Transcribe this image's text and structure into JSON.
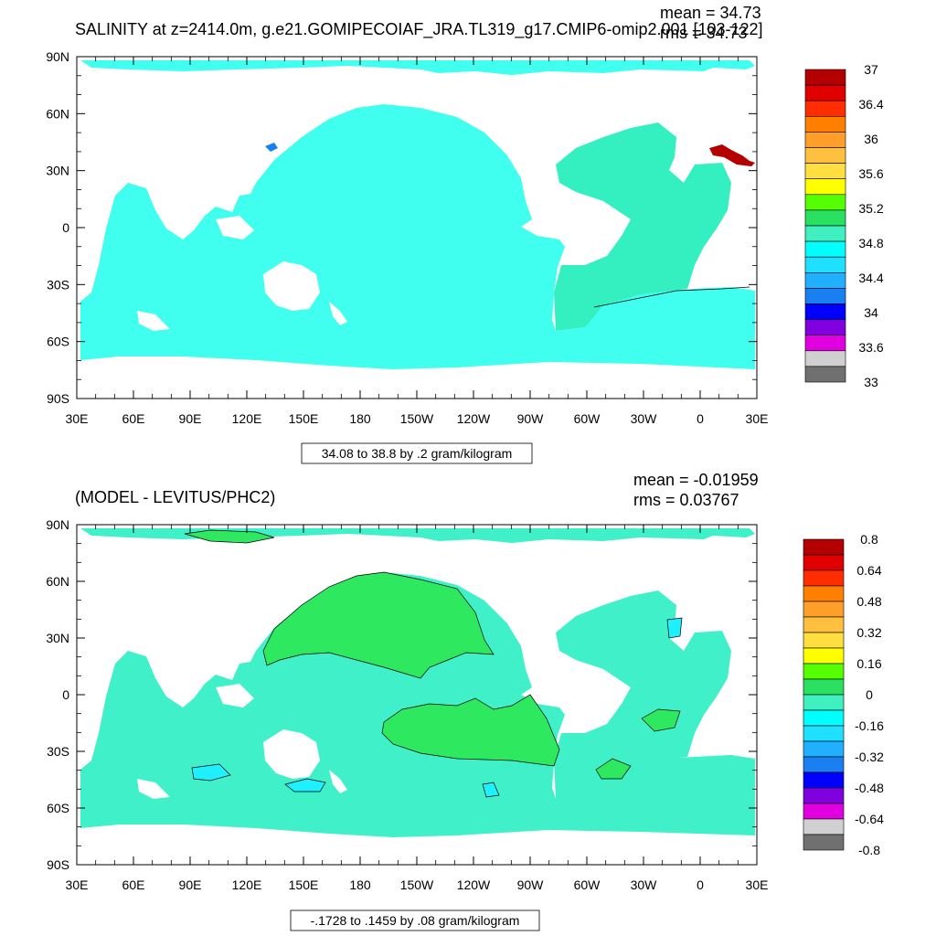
{
  "top_panel": {
    "title": "SALINITY at z=2414.0m, g.e21.GOMIPECOIAF_JRA.TL319_g17.CMIP6-omip2.001 [103-122]",
    "mean_text": "mean = 34.73",
    "rms_text": "rms = 34.73",
    "range_label": "34.08 to 38.8 by .2 gram/kilogram"
  },
  "bottom_panel": {
    "title": "(MODEL - LEVITUS/PHC2)",
    "mean_text": "mean = -0.01959",
    "rms_text": "rms = 0.03767",
    "range_label": "-.1728 to .1459 by .08 gram/kilogram"
  },
  "chart_data": [
    {
      "type": "heatmap",
      "title": "SALINITY at z=2414.0m, g.e21.GOMIPECOIAF_JRA.TL319_g17.CMIP6-omip2.001 [103-122]",
      "x_tick_labels": [
        "30E",
        "60E",
        "90E",
        "120E",
        "150E",
        "180",
        "150W",
        "120W",
        "90W",
        "60W",
        "30W",
        "0",
        "30E"
      ],
      "y_tick_labels": [
        "90N",
        "60N",
        "30N",
        "0",
        "30S",
        "60S",
        "90S"
      ],
      "xlim": [
        30,
        390
      ],
      "ylim": [
        -90,
        90
      ],
      "grid": false,
      "legend": "right",
      "colorbar_labels": [
        "37",
        "36.4",
        "36",
        "35.6",
        "35.2",
        "34.8",
        "34.4",
        "34",
        "33.6",
        "33"
      ],
      "colorbar_colors": [
        "#b40000",
        "#e10000",
        "#ff2d00",
        "#ff8000",
        "#ff9f2a",
        "#ffbf3f",
        "#ffdf3f",
        "#ffff00",
        "#56ff00",
        "#2ae060",
        "#40f0c0",
        "#00ffff",
        "#20e0ff",
        "#20b0ff",
        "#1a7ff0",
        "#0000ff",
        "#8000e0",
        "#e000e0",
        "#d0d0d0",
        "#707070"
      ],
      "stats": {
        "mean": 34.73,
        "rms": 34.73
      },
      "contour_range": "34.08 to 38.8 by .2 gram/kilogram"
    },
    {
      "type": "heatmap",
      "title": "(MODEL - LEVITUS/PHC2)",
      "x_tick_labels": [
        "30E",
        "60E",
        "90E",
        "120E",
        "150E",
        "180",
        "150W",
        "120W",
        "90W",
        "60W",
        "30W",
        "0",
        "30E"
      ],
      "y_tick_labels": [
        "90N",
        "60N",
        "30N",
        "0",
        "30S",
        "60S",
        "90S"
      ],
      "xlim": [
        30,
        390
      ],
      "ylim": [
        -90,
        90
      ],
      "grid": false,
      "legend": "right",
      "colorbar_labels": [
        "0.8",
        "0.64",
        "0.48",
        "0.32",
        "0.16",
        "0",
        "-0.16",
        "-0.32",
        "-0.48",
        "-0.64",
        "-0.8"
      ],
      "colorbar_colors": [
        "#b40000",
        "#e10000",
        "#ff2d00",
        "#ff8000",
        "#ff9f2a",
        "#ffbf3f",
        "#ffdf3f",
        "#ffff00",
        "#56ff00",
        "#2ae060",
        "#40f0c0",
        "#00ffff",
        "#20e0ff",
        "#20b0ff",
        "#1a7ff0",
        "#0000ff",
        "#8000e0",
        "#e000e0",
        "#d0d0d0",
        "#707070"
      ],
      "stats": {
        "mean": -0.01959,
        "rms": 0.03767
      },
      "contour_range": "-.1728 to .1459 by .08 gram/kilogram"
    }
  ],
  "colors": {
    "ocean_top": "#40ffee",
    "ocean_top_atlantic": "#34f0c0",
    "ocean_bottom": "#3ff0c8",
    "positive_anomaly": "#2ee860",
    "negative_anomaly": "#1ff0ff"
  }
}
